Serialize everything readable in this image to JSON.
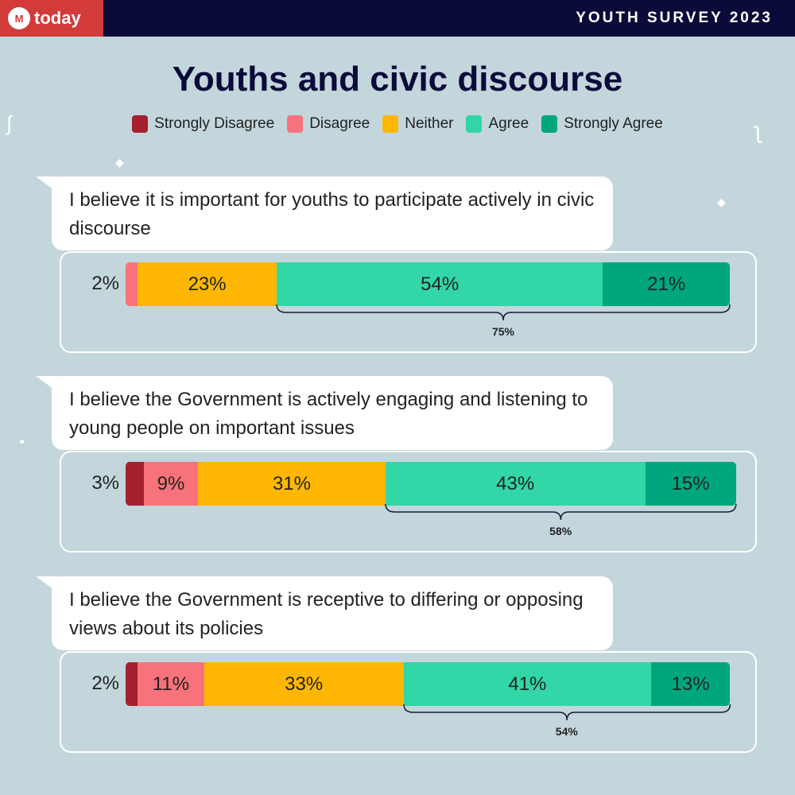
{
  "header": {
    "brand": "today",
    "survey": "YOUTH SURVEY 2023"
  },
  "chart_data": {
    "type": "bar",
    "orientation": "horizontal",
    "stacked": true,
    "title": "Youths and civic discourse",
    "legend": [
      "Strongly Disagree",
      "Disagree",
      "Neither",
      "Agree",
      "Strongly Agree"
    ],
    "colors": [
      "#a51f2e",
      "#f7727a",
      "#ffb703",
      "#33d6a6",
      "#00a77c"
    ],
    "categories": [
      "I believe it is important for youths to participate actively in civic discourse",
      "I believe the Government is actively engaging and listening to young people on important issues",
      "I believe the Government is receptive to differing or opposing views about its policies"
    ],
    "series": [
      {
        "name": "Strongly Disagree",
        "values": [
          0,
          3,
          2
        ]
      },
      {
        "name": "Disagree",
        "values": [
          2,
          9,
          11
        ]
      },
      {
        "name": "Neither",
        "values": [
          23,
          31,
          33
        ]
      },
      {
        "name": "Agree",
        "values": [
          54,
          43,
          41
        ]
      },
      {
        "name": "Strongly Agree",
        "values": [
          21,
          15,
          13
        ]
      }
    ],
    "labels": [
      [
        "",
        "2%",
        "23%",
        "54%",
        "21%"
      ],
      [
        "3%",
        "9%",
        "31%",
        "43%",
        "15%"
      ],
      [
        "2%",
        "11%",
        "33%",
        "41%",
        "13%"
      ]
    ],
    "agree_totals": [
      "75%",
      "58%",
      "54%"
    ]
  }
}
